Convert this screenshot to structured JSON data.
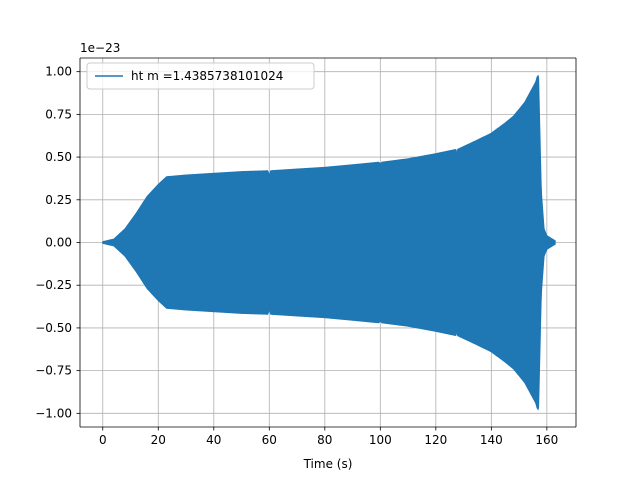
{
  "chart_data": {
    "type": "line",
    "title": "",
    "xlabel": "Time (s)",
    "ylabel": "",
    "offset_text": "1e−23",
    "xlim": [
      -8.2,
      170.5
    ],
    "ylim": [
      -1.08,
      1.08
    ],
    "x_ticks": [
      0,
      20,
      40,
      60,
      80,
      100,
      120,
      140,
      160
    ],
    "x_tick_labels": [
      "0",
      "20",
      "40",
      "60",
      "80",
      "100",
      "120",
      "140",
      "160"
    ],
    "y_ticks": [
      -1.0,
      -0.75,
      -0.5,
      -0.25,
      0.0,
      0.25,
      0.5,
      0.75,
      1.0
    ],
    "y_tick_labels": [
      "−1.00",
      "−0.75",
      "−0.50",
      "−0.25",
      "0.00",
      "0.25",
      "0.50",
      "0.75",
      "1.00"
    ],
    "grid": true,
    "legend_position": "top-left",
    "color": "#1f77b4",
    "series": [
      {
        "name": "ht m =1.4385738101024",
        "x": [
          0,
          4,
          8,
          12,
          16,
          20,
          23,
          30,
          40,
          50,
          59.5,
          60,
          60.5,
          70,
          80,
          90,
          99.5,
          100,
          100.5,
          110,
          120,
          127.3,
          127.5,
          127.8,
          135,
          140,
          145,
          148,
          150,
          151,
          152,
          153,
          154,
          155,
          156,
          156.5,
          157,
          158,
          159,
          160,
          161,
          162,
          163
        ],
        "amplitude": [
          0.005,
          0.02,
          0.08,
          0.17,
          0.27,
          0.34,
          0.385,
          0.395,
          0.405,
          0.415,
          0.42,
          0.39,
          0.42,
          0.43,
          0.44,
          0.455,
          0.47,
          0.46,
          0.47,
          0.49,
          0.52,
          0.545,
          0.5,
          0.545,
          0.6,
          0.64,
          0.7,
          0.74,
          0.78,
          0.8,
          0.82,
          0.85,
          0.88,
          0.91,
          0.94,
          0.97,
          0.98,
          0.3,
          0.08,
          0.04,
          0.03,
          0.02,
          0.01
        ]
      }
    ]
  }
}
